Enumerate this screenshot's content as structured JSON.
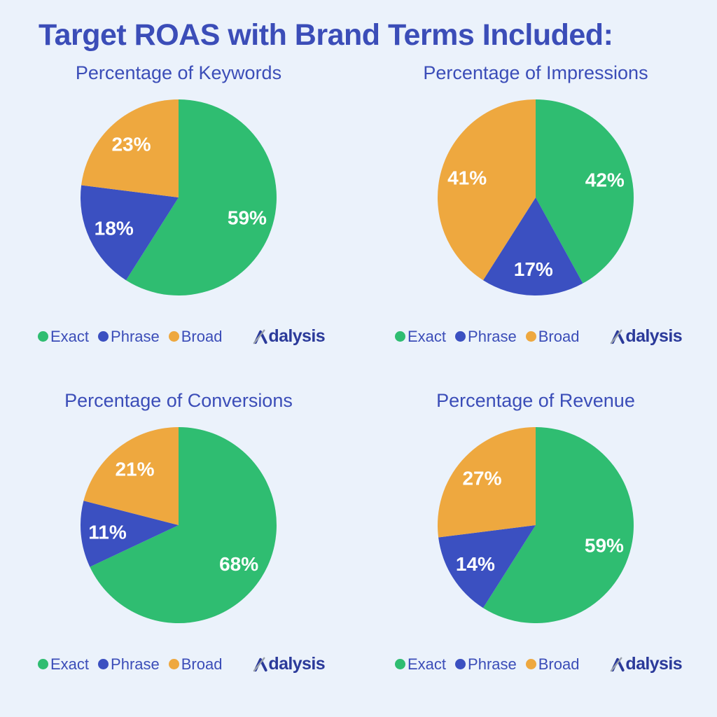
{
  "page": {
    "title": "Target ROAS with Brand Terms Included:",
    "background_color": "#ebf2fb"
  },
  "colors": {
    "exact": "#2fbd71",
    "phrase": "#3b50c1",
    "broad": "#eea83f",
    "heading": "#3b4db8",
    "background": "#ebf2fb",
    "slice_label": "#ffffff",
    "logo_blue": "#2b3a9a",
    "logo_gray": "#9aa1ac"
  },
  "legend": {
    "items": [
      {
        "label": "Exact",
        "color_key": "exact"
      },
      {
        "label": "Phrase",
        "color_key": "phrase"
      },
      {
        "label": "Broad",
        "color_key": "broad"
      }
    ]
  },
  "brand": {
    "name": "Adalysis",
    "wordmark_suffix": "dalysis"
  },
  "chart_data": [
    {
      "type": "pie",
      "title": "Percentage of Keywords",
      "categories": [
        "Exact",
        "Phrase",
        "Broad"
      ],
      "values": [
        59,
        18,
        23
      ],
      "value_labels": [
        "59%",
        "18%",
        "23%"
      ],
      "unit": "%",
      "series_color_keys": [
        "exact",
        "phrase",
        "broad"
      ],
      "start_angle_deg": 0,
      "direction": "clockwise",
      "legend_position": "bottom-left"
    },
    {
      "type": "pie",
      "title": "Percentage of Impressions",
      "categories": [
        "Exact",
        "Phrase",
        "Broad"
      ],
      "values": [
        42,
        17,
        41
      ],
      "value_labels": [
        "42%",
        "17%",
        "41%"
      ],
      "unit": "%",
      "series_color_keys": [
        "exact",
        "phrase",
        "broad"
      ],
      "start_angle_deg": 0,
      "direction": "clockwise",
      "legend_position": "bottom-left"
    },
    {
      "type": "pie",
      "title": "Percentage of Conversions",
      "categories": [
        "Exact",
        "Phrase",
        "Broad"
      ],
      "values": [
        68,
        11,
        21
      ],
      "value_labels": [
        "68%",
        "11%",
        "21%"
      ],
      "unit": "%",
      "series_color_keys": [
        "exact",
        "phrase",
        "broad"
      ],
      "start_angle_deg": 0,
      "direction": "clockwise",
      "legend_position": "bottom-left"
    },
    {
      "type": "pie",
      "title": "Percentage of Revenue",
      "categories": [
        "Exact",
        "Phrase",
        "Broad"
      ],
      "values": [
        59,
        14,
        27
      ],
      "value_labels": [
        "59%",
        "14%",
        "27%"
      ],
      "unit": "%",
      "series_color_keys": [
        "exact",
        "phrase",
        "broad"
      ],
      "start_angle_deg": 0,
      "direction": "clockwise",
      "legend_position": "bottom-left"
    }
  ]
}
